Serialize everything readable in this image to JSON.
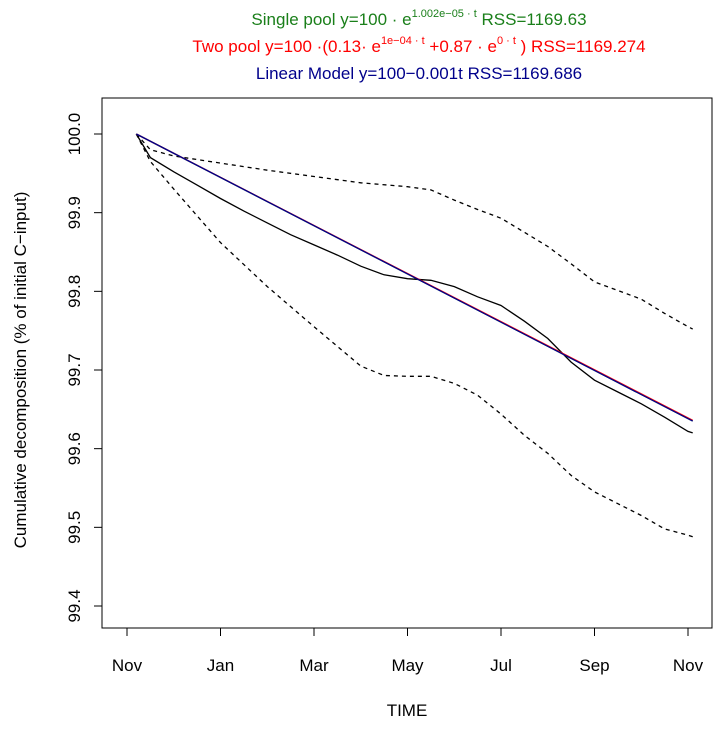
{
  "chart_data": {
    "type": "line",
    "title_lines": [
      {
        "name": "Single pool",
        "text_parts": [
          "Single pool y=100 · e",
          "1.002e−05 · t",
          "  RSS=1169.63"
        ],
        "color": "#1a7f1a"
      },
      {
        "name": "Two pool",
        "text_parts": [
          "Two pool y=100 ·(0.13· e",
          "1e−04 · t",
          " +0.87 · e",
          "0 · t",
          " )  RSS=1169.274"
        ],
        "color": "#ff0000"
      },
      {
        "name": "Linear Model",
        "text_parts": [
          "Linear Model y=100−0.001t RSS=1169.686"
        ],
        "color": "#00008b"
      }
    ],
    "xlabel": "TIME",
    "ylabel": "Cumulative decomposition (% of initial C−input)",
    "x_tick_labels": [
      "Nov",
      "Jan",
      "Mar",
      "May",
      "Jul",
      "Sep",
      "Nov"
    ],
    "x_ticks_month_index": [
      0,
      2,
      4,
      6,
      8,
      10,
      12
    ],
    "y_tick_labels": [
      "99.4",
      "99.5",
      "99.6",
      "99.7",
      "99.8",
      "99.9",
      "100.0"
    ],
    "ylim": [
      99.38,
      100.03
    ],
    "xlim_month_index": [
      -0.05,
      12.4
    ],
    "grid": false,
    "series": [
      {
        "name": "",
        "role": "observed",
        "color": "#000000",
        "dash": "none",
        "x": [
          0.2,
          0.5,
          1,
          1.5,
          2,
          2.5,
          3,
          3.5,
          4,
          4.5,
          5,
          5.5,
          6,
          6.5,
          7,
          7.5,
          8,
          8.5,
          9,
          9.5,
          10,
          10.5,
          11,
          11.5,
          12,
          12.1
        ],
        "y": [
          100.0,
          99.97,
          99.952,
          99.935,
          99.918,
          99.902,
          99.887,
          99.872,
          99.859,
          99.846,
          99.832,
          99.821,
          99.816,
          99.814,
          99.806,
          99.793,
          99.782,
          99.762,
          99.74,
          99.71,
          99.687,
          99.672,
          99.657,
          99.64,
          99.622,
          99.62
        ]
      },
      {
        "name": "",
        "role": "upper bound",
        "color": "#000000",
        "dash": "4,4",
        "x": [
          0.2,
          0.5,
          1,
          2,
          3,
          4,
          5,
          6,
          6.5,
          7,
          7.5,
          8,
          8.5,
          9,
          9.5,
          10,
          10.5,
          11,
          11.5,
          12,
          12.1
        ],
        "y": [
          100.0,
          99.98,
          99.972,
          99.963,
          99.954,
          99.946,
          99.938,
          99.933,
          99.929,
          99.916,
          99.904,
          99.893,
          99.875,
          99.857,
          99.835,
          99.812,
          99.801,
          99.79,
          99.772,
          99.755,
          99.752
        ]
      },
      {
        "name": "",
        "role": "lower bound",
        "color": "#000000",
        "dash": "4,4",
        "x": [
          0.2,
          0.5,
          1,
          2,
          3,
          4,
          5,
          5.5,
          6,
          6.5,
          7,
          7.5,
          8,
          8.5,
          9,
          9.5,
          10,
          10.5,
          11,
          11.5,
          12,
          12.1
        ],
        "y": [
          100.0,
          99.965,
          99.93,
          99.862,
          99.806,
          99.755,
          99.705,
          99.693,
          99.692,
          99.692,
          99.683,
          99.668,
          99.644,
          99.617,
          99.594,
          99.566,
          99.545,
          99.53,
          99.515,
          99.498,
          99.49,
          99.488
        ]
      },
      {
        "name": "Single pool",
        "color": "#1a7f1a",
        "dash": "none",
        "x": [
          0.2,
          12.1
        ],
        "y": [
          100.0,
          99.635
        ]
      },
      {
        "name": "Two pool",
        "color": "#ff0000",
        "dash": "none",
        "x": [
          0.2,
          12.1
        ],
        "y": [
          100.0,
          99.636
        ]
      },
      {
        "name": "Linear Model",
        "color": "#00008b",
        "dash": "none",
        "x": [
          0.2,
          12.1
        ],
        "y": [
          100.0,
          99.635
        ]
      }
    ]
  }
}
